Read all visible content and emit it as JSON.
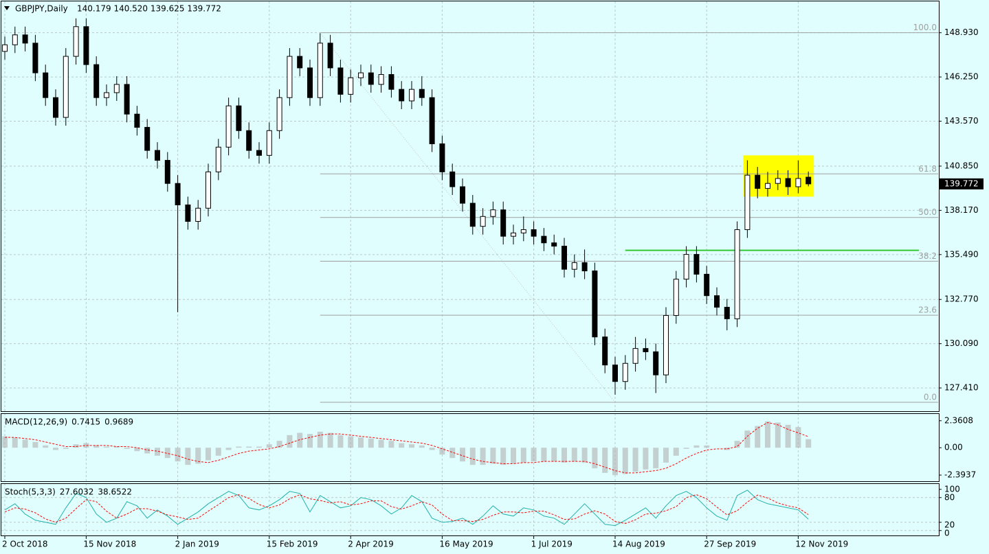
{
  "chart_data": [
    {
      "type": "candlestick",
      "title": "GBPJPY,Daily",
      "subtitle": "140.179 140.520 139.625 139.772",
      "categories": [
        "2 Oct 2018",
        null,
        null,
        null,
        null,
        null,
        null,
        null,
        "15 Nov 2018",
        null,
        null,
        null,
        null,
        null,
        null,
        null,
        null,
        "2 Jan 2019",
        null,
        null,
        null,
        null,
        null,
        null,
        null,
        null,
        "15 Feb 2019",
        null,
        null,
        null,
        null,
        null,
        null,
        null,
        "2 Apr 2019",
        null,
        null,
        null,
        null,
        null,
        null,
        null,
        null,
        "16 May 2019",
        null,
        null,
        null,
        null,
        null,
        null,
        null,
        null,
        "1 Jul 2019",
        null,
        null,
        null,
        null,
        null,
        null,
        null,
        "14 Aug 2019",
        null,
        null,
        null,
        null,
        null,
        null,
        null,
        null,
        "27 Sep 2019",
        null,
        null,
        null,
        null,
        null,
        null,
        null,
        null,
        "12 Nov 2019",
        null
      ],
      "candles": [
        [
          147.8,
          148.7,
          147.3,
          148.2
        ],
        [
          148.2,
          149.3,
          147.7,
          148.8
        ],
        [
          148.8,
          149.3,
          147.8,
          148.3
        ],
        [
          148.3,
          148.8,
          146.0,
          146.5
        ],
        [
          146.5,
          147.0,
          144.5,
          145.0
        ],
        [
          145.0,
          145.5,
          143.3,
          143.8
        ],
        [
          143.8,
          148.0,
          143.3,
          147.5
        ],
        [
          147.5,
          149.8,
          147.0,
          149.3
        ],
        [
          149.3,
          149.8,
          146.5,
          147.0
        ],
        [
          147.0,
          147.5,
          144.5,
          145.0
        ],
        [
          145.0,
          145.8,
          144.5,
          145.3
        ],
        [
          145.3,
          146.3,
          144.8,
          145.8
        ],
        [
          145.8,
          146.3,
          143.5,
          144.0
        ],
        [
          144.0,
          144.5,
          142.7,
          143.2
        ],
        [
          143.2,
          143.7,
          141.3,
          141.8
        ],
        [
          141.8,
          142.3,
          140.7,
          141.2
        ],
        [
          141.2,
          141.7,
          139.3,
          139.8
        ],
        [
          139.8,
          140.3,
          132.0,
          138.5
        ],
        [
          138.5,
          139.0,
          137.0,
          137.5
        ],
        [
          137.5,
          138.8,
          137.0,
          138.3
        ],
        [
          138.3,
          141.0,
          137.8,
          140.5
        ],
        [
          140.5,
          142.5,
          140.0,
          142.0
        ],
        [
          142.0,
          145.0,
          141.5,
          144.5
        ],
        [
          144.5,
          145.0,
          142.5,
          143.0
        ],
        [
          143.0,
          143.5,
          141.3,
          141.8
        ],
        [
          141.8,
          142.3,
          141.0,
          141.5
        ],
        [
          141.5,
          143.5,
          141.0,
          143.0
        ],
        [
          143.0,
          145.5,
          142.5,
          145.0
        ],
        [
          145.0,
          148.0,
          144.5,
          147.5
        ],
        [
          147.5,
          148.0,
          146.3,
          146.8
        ],
        [
          146.8,
          147.3,
          144.5,
          145.0
        ],
        [
          145.0,
          148.9,
          144.5,
          148.3
        ],
        [
          148.3,
          148.8,
          146.3,
          146.8
        ],
        [
          146.8,
          147.3,
          144.7,
          145.2
        ],
        [
          145.2,
          146.7,
          144.7,
          146.2
        ],
        [
          146.2,
          147.0,
          145.7,
          146.5
        ],
        [
          146.5,
          147.0,
          145.3,
          145.8
        ],
        [
          145.8,
          146.9,
          145.3,
          146.4
        ],
        [
          146.4,
          146.9,
          145.0,
          145.5
        ],
        [
          145.5,
          146.0,
          144.3,
          144.8
        ],
        [
          144.8,
          146.0,
          144.3,
          145.5
        ],
        [
          145.5,
          146.3,
          144.5,
          145.0
        ],
        [
          145.0,
          145.5,
          141.7,
          142.2
        ],
        [
          142.2,
          142.7,
          140.0,
          140.5
        ],
        [
          140.5,
          141.0,
          139.1,
          139.6
        ],
        [
          139.6,
          140.1,
          138.1,
          138.6
        ],
        [
          138.6,
          139.1,
          136.7,
          137.2
        ],
        [
          137.2,
          138.3,
          136.7,
          137.8
        ],
        [
          137.8,
          138.7,
          137.3,
          138.2
        ],
        [
          138.2,
          138.7,
          136.1,
          136.6
        ],
        [
          136.6,
          137.3,
          136.1,
          136.8
        ],
        [
          136.8,
          137.8,
          136.3,
          137.0
        ],
        [
          137.0,
          137.5,
          136.1,
          136.6
        ],
        [
          136.6,
          137.1,
          135.7,
          136.2
        ],
        [
          136.2,
          136.7,
          135.5,
          136.0
        ],
        [
          136.0,
          136.5,
          134.1,
          134.6
        ],
        [
          134.6,
          135.5,
          134.1,
          135.0
        ],
        [
          135.0,
          135.8,
          134.0,
          134.5
        ],
        [
          134.5,
          135.0,
          130.0,
          130.5
        ],
        [
          130.5,
          131.0,
          128.3,
          128.8
        ],
        [
          128.8,
          129.3,
          127.0,
          127.8
        ],
        [
          127.8,
          129.4,
          127.3,
          128.9
        ],
        [
          128.9,
          130.5,
          128.4,
          129.8
        ],
        [
          129.8,
          130.4,
          129.1,
          129.6
        ],
        [
          129.6,
          130.1,
          127.1,
          128.2
        ],
        [
          128.2,
          132.3,
          127.7,
          131.8
        ],
        [
          131.8,
          134.5,
          131.3,
          134.0
        ],
        [
          134.0,
          136.0,
          133.5,
          135.5
        ],
        [
          135.5,
          136.0,
          133.8,
          134.3
        ],
        [
          134.3,
          134.8,
          132.5,
          133.0
        ],
        [
          133.0,
          133.5,
          131.8,
          132.3
        ],
        [
          132.3,
          132.8,
          130.9,
          131.6
        ],
        [
          131.6,
          137.5,
          131.1,
          137.0
        ],
        [
          137.0,
          141.2,
          136.5,
          140.3
        ],
        [
          140.3,
          140.8,
          138.9,
          139.5
        ],
        [
          139.5,
          140.5,
          139.0,
          139.8
        ],
        [
          139.8,
          140.6,
          139.4,
          140.1
        ],
        [
          140.1,
          140.6,
          139.1,
          139.6
        ],
        [
          139.6,
          141.2,
          139.2,
          140.1
        ],
        [
          140.179,
          140.52,
          139.625,
          139.772
        ]
      ],
      "bull_color": "#ffffff",
      "bear_color": "#000000",
      "ylim": [
        126.0,
        150.83
      ],
      "yticks": [
        {
          "value": 148.93,
          "label": "148.930"
        },
        {
          "value": 146.25,
          "label": "146.250"
        },
        {
          "value": 143.57,
          "label": "143.570"
        },
        {
          "value": 140.85,
          "label": "140.850"
        },
        {
          "value": 138.17,
          "label": "138.170"
        },
        {
          "value": 135.49,
          "label": "135.490"
        },
        {
          "value": 132.77,
          "label": "132.770"
        },
        {
          "value": 130.09,
          "label": "130.090"
        },
        {
          "value": 127.41,
          "label": "127.410"
        }
      ],
      "grid": true,
      "fibonacci": {
        "color": "#a0a0a0",
        "levels": [
          {
            "value": 148.93,
            "label": "100.0"
          },
          {
            "value": 140.38,
            "label": "61.8"
          },
          {
            "value": 137.74,
            "label": "50.0"
          },
          {
            "value": 135.09,
            "label": "38.2"
          },
          {
            "value": 131.82,
            "label": "23.6"
          },
          {
            "value": 126.54,
            "label": "0.0"
          }
        ]
      },
      "hline": {
        "value": 135.75,
        "color": "#32c832"
      },
      "box": {
        "top": 141.5,
        "bottom": 139.0,
        "color": "#ffff00"
      }
    },
    {
      "type": "macd",
      "title": "MACD(12,26,9)",
      "histogram": {
        "color": "#b0b0b0",
        "values": [
          1.0,
          0.9,
          0.7,
          0.5,
          0.2,
          -0.2,
          -0.1,
          0.3,
          0.4,
          0.2,
          0.1,
          0.1,
          -0.1,
          -0.3,
          -0.5,
          -0.7,
          -0.9,
          -1.2,
          -1.5,
          -1.4,
          -1.1,
          -0.7,
          -0.2,
          0.1,
          0.1,
          0.1,
          0.3,
          0.6,
          1.1,
          1.3,
          1.2,
          1.4,
          1.3,
          1.1,
          1.0,
          0.9,
          0.8,
          0.7,
          0.6,
          0.4,
          0.3,
          0.2,
          -0.2,
          -0.6,
          -0.9,
          -1.2,
          -1.5,
          -1.5,
          -1.4,
          -1.5,
          -1.4,
          -1.3,
          -1.2,
          -1.2,
          -1.2,
          -1.3,
          -1.2,
          -1.3,
          -1.8,
          -2.2,
          -2.4,
          -2.3,
          -2.1,
          -1.9,
          -1.8,
          -1.3,
          -0.7,
          -0.1,
          0.2,
          0.2,
          0.0,
          -0.2,
          0.6,
          1.5,
          1.9,
          2.3,
          2.2,
          2.0,
          1.8,
          0.7415
        ]
      },
      "signal": {
        "color": "#ff0000",
        "values": [
          0.9,
          0.9,
          0.8,
          0.7,
          0.5,
          0.3,
          0.1,
          0.1,
          0.2,
          0.2,
          0.2,
          0.1,
          0.1,
          0.0,
          -0.2,
          -0.3,
          -0.5,
          -0.7,
          -1.0,
          -1.2,
          -1.3,
          -1.1,
          -0.8,
          -0.5,
          -0.3,
          -0.2,
          -0.1,
          0.1,
          0.4,
          0.7,
          0.9,
          1.1,
          1.2,
          1.2,
          1.1,
          1.0,
          0.9,
          0.8,
          0.7,
          0.6,
          0.5,
          0.4,
          0.2,
          -0.1,
          -0.4,
          -0.7,
          -1.0,
          -1.2,
          -1.3,
          -1.4,
          -1.4,
          -1.3,
          -1.3,
          -1.2,
          -1.2,
          -1.2,
          -1.2,
          -1.2,
          -1.4,
          -1.7,
          -2.0,
          -2.2,
          -2.2,
          -2.1,
          -2.0,
          -1.8,
          -1.4,
          -0.9,
          -0.5,
          -0.2,
          -0.1,
          -0.1,
          0.1,
          1.0,
          1.7,
          2.2,
          2.0,
          1.6,
          1.3,
          0.9689
        ]
      },
      "ylim": [
        -2.93,
        2.95
      ],
      "yticks": [
        2.3608,
        {
          "value": 0,
          "label": "0.00"
        },
        -2.3937
      ]
    },
    {
      "type": "stochastic",
      "title": "Stoch(5,3,3)",
      "k": {
        "color": "#20b2aa",
        "values": [
          50,
          65,
          40,
          25,
          20,
          15,
          55,
          90,
          80,
          40,
          20,
          30,
          70,
          60,
          30,
          50,
          35,
          15,
          30,
          45,
          65,
          80,
          95,
          85,
          55,
          50,
          60,
          75,
          95,
          90,
          45,
          85,
          70,
          55,
          60,
          80,
          75,
          60,
          40,
          55,
          85,
          70,
          30,
          20,
          22,
          30,
          15,
          35,
          60,
          40,
          35,
          55,
          50,
          35,
          30,
          15,
          40,
          65,
          40,
          15,
          12,
          25,
          40,
          55,
          30,
          60,
          85,
          95,
          80,
          55,
          35,
          25,
          85,
          98,
          75,
          65,
          60,
          55,
          50,
          27.6032
        ]
      },
      "d": {
        "color": "#ff0000",
        "values": [
          45,
          55,
          52,
          43,
          28,
          20,
          30,
          53,
          75,
          70,
          47,
          30,
          40,
          53,
          53,
          47,
          38,
          33,
          27,
          30,
          47,
          63,
          80,
          87,
          78,
          63,
          55,
          62,
          77,
          87,
          77,
          73,
          67,
          70,
          62,
          65,
          72,
          72,
          58,
          52,
          60,
          70,
          62,
          40,
          24,
          24,
          22,
          27,
          37,
          45,
          45,
          43,
          47,
          47,
          38,
          27,
          28,
          40,
          48,
          40,
          22,
          17,
          26,
          40,
          42,
          48,
          58,
          80,
          87,
          77,
          57,
          38,
          48,
          69,
          86,
          79,
          67,
          60,
          55,
          38.6522
        ]
      },
      "ylim": [
        -12,
        113
      ],
      "yticks": [
        100,
        80,
        20,
        0
      ]
    }
  ]
}
